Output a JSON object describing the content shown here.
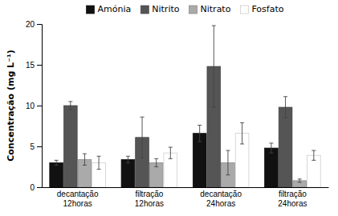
{
  "chart_data": {
    "type": "bar",
    "categories": [
      "decantação\n12horas",
      "filtração\n12horas",
      "decantação\n24horas",
      "filtração\n24horas"
    ],
    "series": [
      {
        "name": "Amónia",
        "color": "#111111",
        "values": [
          3.0,
          3.4,
          6.6,
          4.8
        ],
        "errors": [
          0.3,
          0.4,
          1.0,
          0.6
        ]
      },
      {
        "name": "Nitrito",
        "color": "#555555",
        "values": [
          10.0,
          6.1,
          14.8,
          9.8
        ],
        "errors": [
          0.5,
          2.5,
          5.0,
          1.3
        ]
      },
      {
        "name": "Nitrato",
        "color": "#aaaaaa",
        "values": [
          3.4,
          3.0,
          3.0,
          0.8
        ],
        "errors": [
          0.7,
          0.5,
          1.5,
          0.2
        ]
      },
      {
        "name": "Fosfato",
        "color": "#ffffff",
        "values": [
          3.0,
          4.2,
          6.6,
          3.9
        ],
        "errors": [
          0.8,
          0.7,
          1.3,
          0.6
        ]
      }
    ],
    "ylabel": "Concentração (mg L⁻¹)",
    "ylim": [
      0,
      20
    ],
    "yticks": [
      0,
      5,
      10,
      15,
      20
    ],
    "grid": false,
    "legend": "top"
  }
}
